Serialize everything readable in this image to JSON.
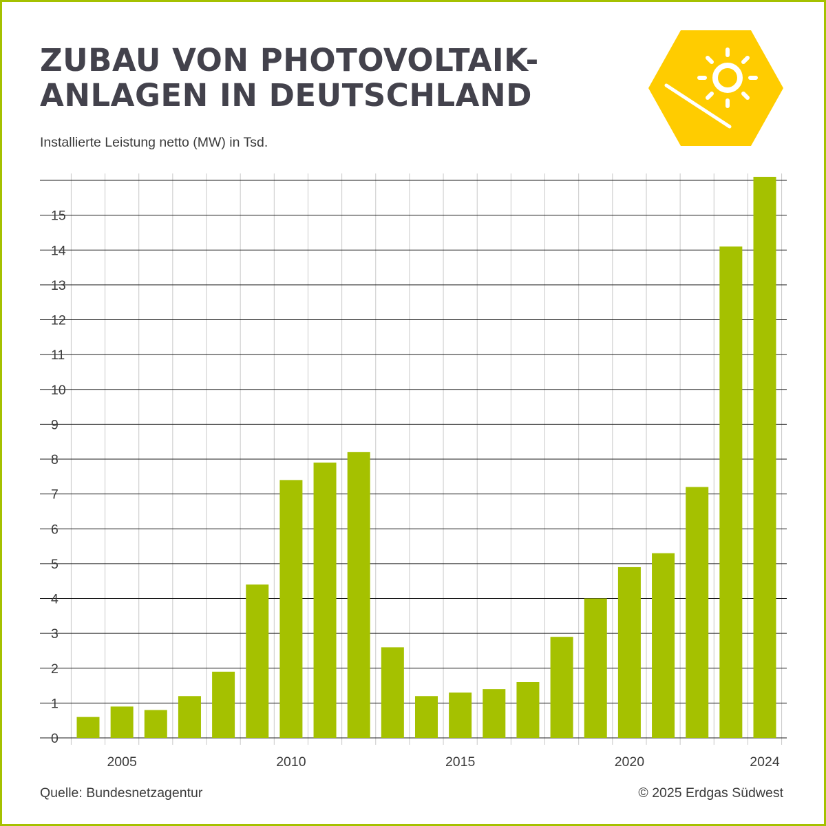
{
  "header": {
    "title_lines": [
      "ZUBAU VON PHOTOVOLTAIK-",
      "ANLAGEN IN DEUTSCHLAND"
    ],
    "subtitle": "Installierte Leistung netto (MW) in Tsd."
  },
  "logo": {
    "icon": "sun-panel-icon",
    "color": "#ffcc00"
  },
  "footer": {
    "source": "Quelle: Bundesnetzagentur",
    "copyright": "© 2025 Erdgas Südwest"
  },
  "colors": {
    "bar": "#a5c100",
    "frame": "#a5c100",
    "title": "#43424c"
  },
  "chart_data": {
    "type": "bar",
    "title": "ZUBAU VON PHOTOVOLTAIK-ANLAGEN IN DEUTSCHLAND",
    "ylabel": "Installierte Leistung netto (MW) in Tsd.",
    "categories": [
      "2004",
      "2005",
      "2006",
      "2007",
      "2008",
      "2009",
      "2010",
      "2011",
      "2012",
      "2013",
      "2014",
      "2015",
      "2016",
      "2017",
      "2018",
      "2019",
      "2020",
      "2021",
      "2022",
      "2023",
      "2024"
    ],
    "values": [
      0.6,
      0.9,
      0.8,
      1.2,
      1.9,
      4.4,
      7.4,
      7.9,
      8.2,
      2.6,
      1.2,
      1.3,
      1.4,
      1.6,
      2.9,
      4.0,
      4.9,
      5.3,
      7.2,
      14.1,
      16.1
    ],
    "x_tick_labels": [
      "2005",
      "2010",
      "2015",
      "2020",
      "2024"
    ],
    "y_tick_labels": [
      "0",
      "1",
      "2",
      "3",
      "4",
      "5",
      "6",
      "7",
      "8",
      "9",
      "10",
      "11",
      "12",
      "13",
      "14",
      "15"
    ],
    "ylim": [
      0,
      16
    ],
    "grid": true,
    "legend": "none"
  }
}
